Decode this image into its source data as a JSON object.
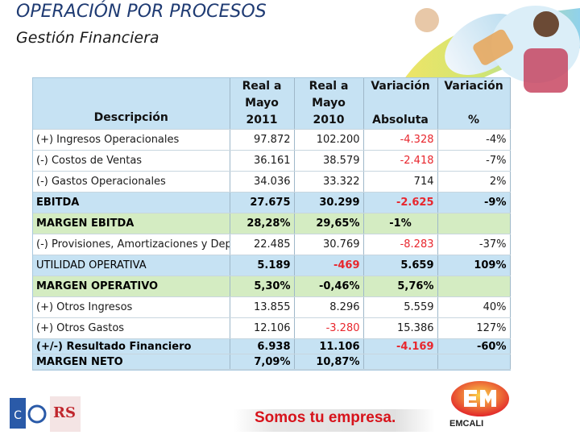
{
  "header": {
    "title": "OPERACIÓN POR PROCESOS",
    "subtitle": "Gestión Financiera"
  },
  "table": {
    "columns": {
      "description": "Descripción",
      "col1": [
        "Real a",
        "Mayo",
        "2011"
      ],
      "col2": [
        "Real a",
        "Mayo",
        "2010"
      ],
      "col3": [
        "Variación",
        "",
        "Absoluta"
      ],
      "col4": [
        "Variación",
        "",
        "%"
      ]
    },
    "rows": [
      {
        "label": "(+) Ingresos Operacionales",
        "v1": "97.872",
        "v2": "102.200",
        "v3": "-4.328",
        "v4": "-4%"
      },
      {
        "label": "(-) Costos de Ventas",
        "v1": "36.161",
        "v2": "38.579",
        "v3": "-2.418",
        "v4": "-7%"
      },
      {
        "label": "(-) Gastos Operacionales",
        "v1": "34.036",
        "v2": "33.322",
        "v3": "714",
        "v4": "2%"
      },
      {
        "label": "EBITDA",
        "v1": "27.675",
        "v2": "30.299",
        "v3": "-2.625",
        "v4": "-9%"
      },
      {
        "label": "MARGEN EBITDA",
        "v1": "28,28%",
        "v2": "29,65%",
        "v3": "-1%",
        "v4": ""
      },
      {
        "label": "(-) Provisiones, Amortizaciones y Depreciaciones",
        "v1": "22.485",
        "v2": "30.769",
        "v3": "-8.283",
        "v4": "-37%"
      },
      {
        "label": "UTILIDAD OPERATIVA",
        "v1": "5.189",
        "v2": "-469",
        "v3": "5.659",
        "v4": "109%"
      },
      {
        "label": "MARGEN OPERATIVO",
        "v1": "5,30%",
        "v2": "-0,46%",
        "v3": "5,76%",
        "v4": ""
      },
      {
        "label": "(+) Otros Ingresos",
        "v1": "13.855",
        "v2": "8.296",
        "v3": "5.559",
        "v4": "40%"
      },
      {
        "label": "(+) Otros Gastos",
        "v1": "12.106",
        "v2": "-3.280",
        "v3": "15.386",
        "v4": "127%"
      },
      {
        "label": "(+/-) Resultado Financiero",
        "v1": "6.938",
        "v2": "11.106",
        "v3": "-4.169",
        "v4": "-60%"
      },
      {
        "label": "MARGEN NETO",
        "v1": "7,09%",
        "v2": "10,87%",
        "v3": "",
        "v4": ""
      }
    ]
  },
  "footer": {
    "slogan": "Somos tu empresa.",
    "brand": "EMCALI",
    "logo_rs": "RS"
  },
  "colors": {
    "header_blue": "#c6e2f3",
    "margin_green": "#d4ecc2",
    "negative_red": "#e8262d",
    "slogan_red": "#d7131b"
  }
}
